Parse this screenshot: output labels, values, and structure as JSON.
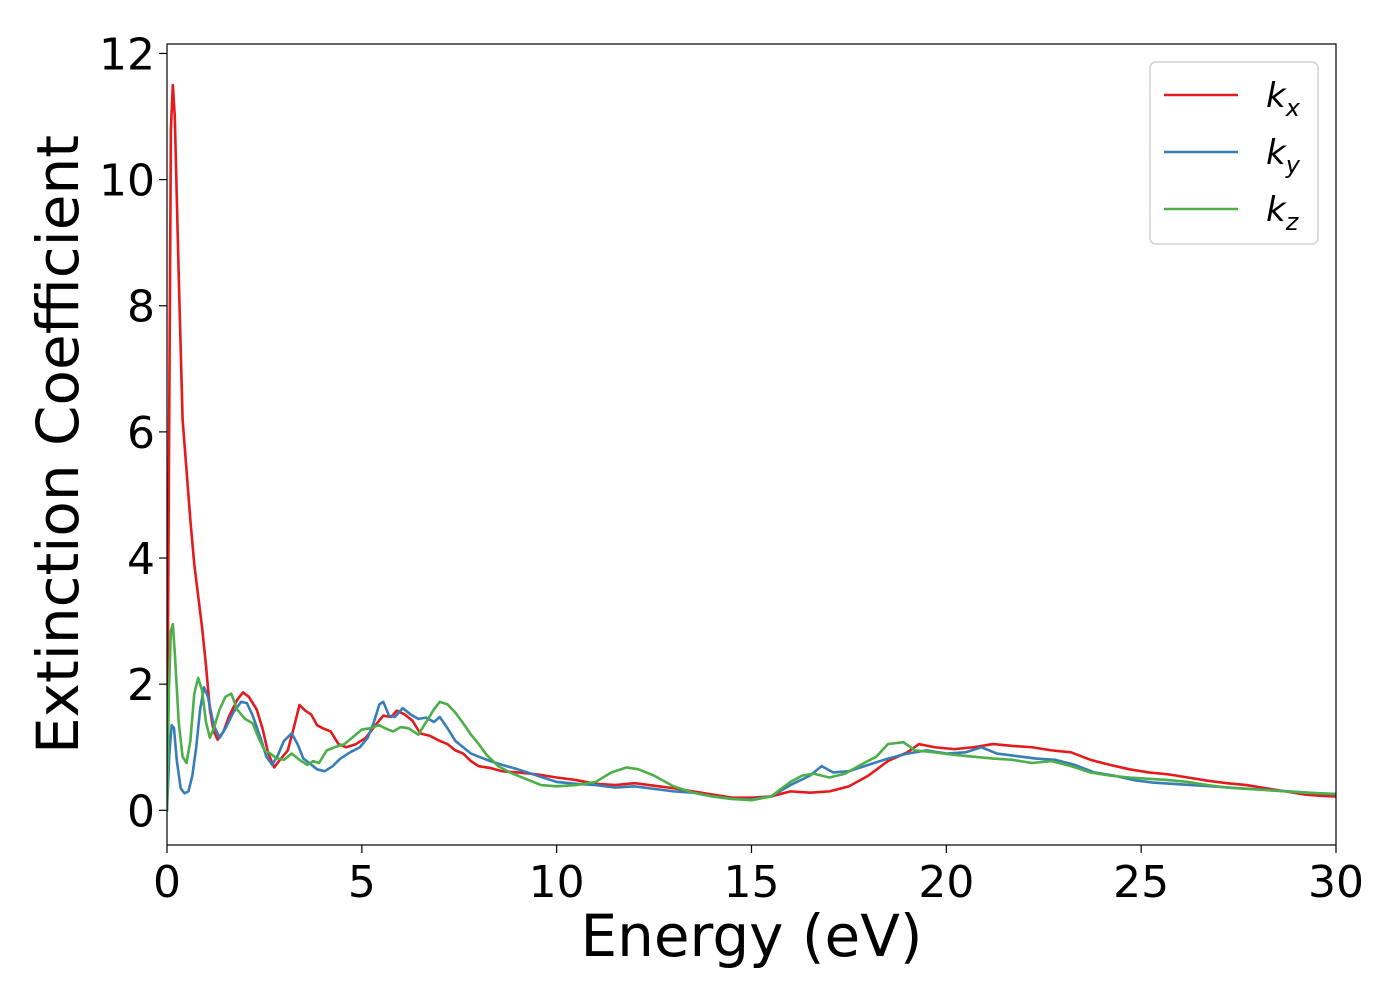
{
  "chart_data": {
    "type": "line",
    "title": "",
    "xlabel": "Energy (eV)",
    "ylabel": "Extinction Coefficient",
    "xlim": [
      0,
      30
    ],
    "ylim": [
      -0.55,
      12.15
    ],
    "xticks": [
      0,
      5,
      10,
      15,
      20,
      25,
      30
    ],
    "yticks": [
      0,
      2,
      4,
      6,
      8,
      10,
      12
    ],
    "grid": false,
    "legend_position": "top-right",
    "series": [
      {
        "name": "k",
        "subscript": "x",
        "color": "#e41a1c",
        "points": [
          [
            0,
            0
          ],
          [
            0.05,
            5.5
          ],
          [
            0.1,
            10.8
          ],
          [
            0.15,
            11.5
          ],
          [
            0.2,
            11.0
          ],
          [
            0.3,
            8.5
          ],
          [
            0.4,
            6.2
          ],
          [
            0.5,
            5.4
          ],
          [
            0.6,
            4.6
          ],
          [
            0.7,
            3.9
          ],
          [
            0.8,
            3.4
          ],
          [
            0.9,
            2.9
          ],
          [
            1.0,
            2.3
          ],
          [
            1.1,
            1.6
          ],
          [
            1.2,
            1.25
          ],
          [
            1.3,
            1.12
          ],
          [
            1.45,
            1.25
          ],
          [
            1.6,
            1.5
          ],
          [
            1.8,
            1.75
          ],
          [
            1.95,
            1.87
          ],
          [
            2.1,
            1.8
          ],
          [
            2.3,
            1.6
          ],
          [
            2.45,
            1.3
          ],
          [
            2.6,
            0.9
          ],
          [
            2.75,
            0.68
          ],
          [
            2.9,
            0.8
          ],
          [
            3.1,
            0.95
          ],
          [
            3.25,
            1.3
          ],
          [
            3.4,
            1.67
          ],
          [
            3.55,
            1.58
          ],
          [
            3.7,
            1.52
          ],
          [
            3.85,
            1.35
          ],
          [
            4.0,
            1.3
          ],
          [
            4.2,
            1.25
          ],
          [
            4.4,
            1.05
          ],
          [
            4.6,
            1.0
          ],
          [
            4.85,
            1.05
          ],
          [
            5.1,
            1.15
          ],
          [
            5.35,
            1.35
          ],
          [
            5.55,
            1.5
          ],
          [
            5.75,
            1.48
          ],
          [
            5.9,
            1.58
          ],
          [
            6.1,
            1.52
          ],
          [
            6.3,
            1.42
          ],
          [
            6.5,
            1.22
          ],
          [
            6.75,
            1.18
          ],
          [
            7.0,
            1.1
          ],
          [
            7.2,
            1.05
          ],
          [
            7.4,
            0.95
          ],
          [
            7.6,
            0.9
          ],
          [
            7.8,
            0.78
          ],
          [
            8.0,
            0.7
          ],
          [
            8.3,
            0.67
          ],
          [
            8.6,
            0.62
          ],
          [
            9.0,
            0.6
          ],
          [
            9.5,
            0.57
          ],
          [
            10.0,
            0.52
          ],
          [
            10.5,
            0.48
          ],
          [
            11.0,
            0.42
          ],
          [
            11.5,
            0.4
          ],
          [
            12.0,
            0.43
          ],
          [
            12.5,
            0.39
          ],
          [
            13.0,
            0.35
          ],
          [
            13.5,
            0.3
          ],
          [
            14.0,
            0.25
          ],
          [
            14.5,
            0.2
          ],
          [
            15.0,
            0.2
          ],
          [
            15.5,
            0.22
          ],
          [
            16.0,
            0.3
          ],
          [
            16.5,
            0.28
          ],
          [
            17.0,
            0.3
          ],
          [
            17.5,
            0.38
          ],
          [
            18.0,
            0.55
          ],
          [
            18.5,
            0.78
          ],
          [
            19.0,
            0.92
          ],
          [
            19.3,
            1.05
          ],
          [
            19.7,
            1.0
          ],
          [
            20.2,
            0.97
          ],
          [
            20.7,
            1.0
          ],
          [
            21.2,
            1.05
          ],
          [
            21.7,
            1.02
          ],
          [
            22.2,
            1.0
          ],
          [
            22.7,
            0.95
          ],
          [
            23.2,
            0.92
          ],
          [
            23.7,
            0.8
          ],
          [
            24.2,
            0.72
          ],
          [
            24.7,
            0.65
          ],
          [
            25.2,
            0.6
          ],
          [
            25.7,
            0.57
          ],
          [
            26.2,
            0.52
          ],
          [
            26.7,
            0.47
          ],
          [
            27.2,
            0.43
          ],
          [
            27.7,
            0.4
          ],
          [
            28.2,
            0.35
          ],
          [
            28.7,
            0.3
          ],
          [
            29.2,
            0.25
          ],
          [
            29.6,
            0.23
          ],
          [
            30.0,
            0.22
          ]
        ]
      },
      {
        "name": "k",
        "subscript": "y",
        "color": "#377eb8",
        "points": [
          [
            0,
            0
          ],
          [
            0.06,
            0.9
          ],
          [
            0.12,
            1.35
          ],
          [
            0.18,
            1.3
          ],
          [
            0.25,
            0.8
          ],
          [
            0.35,
            0.35
          ],
          [
            0.45,
            0.27
          ],
          [
            0.55,
            0.3
          ],
          [
            0.65,
            0.55
          ],
          [
            0.75,
            1.0
          ],
          [
            0.85,
            1.6
          ],
          [
            0.95,
            1.95
          ],
          [
            1.05,
            1.8
          ],
          [
            1.2,
            1.35
          ],
          [
            1.35,
            1.15
          ],
          [
            1.5,
            1.3
          ],
          [
            1.7,
            1.55
          ],
          [
            1.9,
            1.72
          ],
          [
            2.05,
            1.7
          ],
          [
            2.2,
            1.5
          ],
          [
            2.4,
            1.15
          ],
          [
            2.55,
            0.85
          ],
          [
            2.7,
            0.72
          ],
          [
            2.85,
            0.88
          ],
          [
            3.0,
            1.1
          ],
          [
            3.2,
            1.22
          ],
          [
            3.35,
            1.05
          ],
          [
            3.5,
            0.82
          ],
          [
            3.65,
            0.75
          ],
          [
            3.85,
            0.65
          ],
          [
            4.05,
            0.62
          ],
          [
            4.25,
            0.7
          ],
          [
            4.45,
            0.82
          ],
          [
            4.7,
            0.92
          ],
          [
            4.95,
            1.0
          ],
          [
            5.15,
            1.15
          ],
          [
            5.3,
            1.38
          ],
          [
            5.45,
            1.68
          ],
          [
            5.55,
            1.72
          ],
          [
            5.7,
            1.5
          ],
          [
            5.85,
            1.48
          ],
          [
            6.05,
            1.62
          ],
          [
            6.25,
            1.52
          ],
          [
            6.45,
            1.45
          ],
          [
            6.65,
            1.47
          ],
          [
            6.85,
            1.4
          ],
          [
            7.0,
            1.48
          ],
          [
            7.2,
            1.3
          ],
          [
            7.4,
            1.1
          ],
          [
            7.6,
            1.0
          ],
          [
            7.8,
            0.9
          ],
          [
            8.0,
            0.85
          ],
          [
            8.3,
            0.78
          ],
          [
            8.6,
            0.72
          ],
          [
            9.0,
            0.65
          ],
          [
            9.5,
            0.55
          ],
          [
            10.0,
            0.45
          ],
          [
            10.5,
            0.42
          ],
          [
            11.0,
            0.4
          ],
          [
            11.5,
            0.36
          ],
          [
            12.0,
            0.38
          ],
          [
            12.5,
            0.34
          ],
          [
            13.0,
            0.3
          ],
          [
            13.5,
            0.28
          ],
          [
            14.0,
            0.22
          ],
          [
            14.5,
            0.18
          ],
          [
            15.0,
            0.17
          ],
          [
            15.5,
            0.22
          ],
          [
            16.0,
            0.4
          ],
          [
            16.5,
            0.55
          ],
          [
            16.8,
            0.7
          ],
          [
            17.1,
            0.6
          ],
          [
            17.5,
            0.62
          ],
          [
            18.0,
            0.72
          ],
          [
            18.5,
            0.82
          ],
          [
            19.0,
            0.9
          ],
          [
            19.5,
            0.95
          ],
          [
            20.0,
            0.9
          ],
          [
            20.5,
            0.92
          ],
          [
            20.9,
            1.0
          ],
          [
            21.3,
            0.9
          ],
          [
            21.8,
            0.86
          ],
          [
            22.3,
            0.82
          ],
          [
            22.8,
            0.8
          ],
          [
            23.3,
            0.72
          ],
          [
            23.8,
            0.6
          ],
          [
            24.3,
            0.55
          ],
          [
            24.8,
            0.48
          ],
          [
            25.3,
            0.44
          ],
          [
            25.8,
            0.42
          ],
          [
            26.3,
            0.4
          ],
          [
            26.8,
            0.38
          ],
          [
            27.3,
            0.36
          ],
          [
            27.8,
            0.34
          ],
          [
            28.3,
            0.32
          ],
          [
            28.8,
            0.3
          ],
          [
            29.3,
            0.28
          ],
          [
            30.0,
            0.25
          ]
        ]
      },
      {
        "name": "k",
        "subscript": "z",
        "color": "#4daf4a",
        "points": [
          [
            0,
            0
          ],
          [
            0.05,
            1.9
          ],
          [
            0.1,
            2.85
          ],
          [
            0.15,
            2.95
          ],
          [
            0.2,
            2.5
          ],
          [
            0.3,
            1.4
          ],
          [
            0.4,
            0.85
          ],
          [
            0.5,
            0.75
          ],
          [
            0.6,
            1.1
          ],
          [
            0.7,
            1.85
          ],
          [
            0.8,
            2.1
          ],
          [
            0.9,
            1.9
          ],
          [
            1.0,
            1.4
          ],
          [
            1.1,
            1.15
          ],
          [
            1.2,
            1.3
          ],
          [
            1.35,
            1.6
          ],
          [
            1.5,
            1.8
          ],
          [
            1.65,
            1.85
          ],
          [
            1.8,
            1.6
          ],
          [
            2.0,
            1.45
          ],
          [
            2.2,
            1.38
          ],
          [
            2.35,
            1.15
          ],
          [
            2.5,
            0.95
          ],
          [
            2.65,
            0.9
          ],
          [
            2.8,
            0.83
          ],
          [
            3.0,
            0.8
          ],
          [
            3.2,
            0.9
          ],
          [
            3.4,
            0.8
          ],
          [
            3.6,
            0.72
          ],
          [
            3.75,
            0.78
          ],
          [
            3.9,
            0.75
          ],
          [
            4.1,
            0.95
          ],
          [
            4.3,
            1.0
          ],
          [
            4.55,
            1.05
          ],
          [
            4.75,
            1.15
          ],
          [
            5.0,
            1.28
          ],
          [
            5.2,
            1.3
          ],
          [
            5.45,
            1.35
          ],
          [
            5.6,
            1.3
          ],
          [
            5.8,
            1.25
          ],
          [
            6.0,
            1.32
          ],
          [
            6.2,
            1.3
          ],
          [
            6.45,
            1.2
          ],
          [
            6.65,
            1.4
          ],
          [
            6.85,
            1.6
          ],
          [
            7.0,
            1.72
          ],
          [
            7.2,
            1.68
          ],
          [
            7.4,
            1.55
          ],
          [
            7.6,
            1.38
          ],
          [
            7.8,
            1.2
          ],
          [
            8.0,
            1.05
          ],
          [
            8.2,
            0.88
          ],
          [
            8.5,
            0.7
          ],
          [
            8.8,
            0.6
          ],
          [
            9.2,
            0.5
          ],
          [
            9.6,
            0.4
          ],
          [
            10.0,
            0.38
          ],
          [
            10.5,
            0.4
          ],
          [
            11.0,
            0.45
          ],
          [
            11.4,
            0.6
          ],
          [
            11.8,
            0.68
          ],
          [
            12.1,
            0.65
          ],
          [
            12.5,
            0.55
          ],
          [
            13.0,
            0.38
          ],
          [
            13.5,
            0.28
          ],
          [
            14.0,
            0.22
          ],
          [
            14.5,
            0.18
          ],
          [
            15.0,
            0.16
          ],
          [
            15.5,
            0.22
          ],
          [
            16.0,
            0.45
          ],
          [
            16.3,
            0.55
          ],
          [
            16.6,
            0.58
          ],
          [
            17.0,
            0.52
          ],
          [
            17.4,
            0.58
          ],
          [
            17.8,
            0.72
          ],
          [
            18.2,
            0.85
          ],
          [
            18.5,
            1.05
          ],
          [
            18.9,
            1.08
          ],
          [
            19.2,
            0.95
          ],
          [
            19.7,
            0.92
          ],
          [
            20.2,
            0.88
          ],
          [
            20.7,
            0.85
          ],
          [
            21.2,
            0.82
          ],
          [
            21.7,
            0.8
          ],
          [
            22.2,
            0.75
          ],
          [
            22.7,
            0.78
          ],
          [
            23.2,
            0.7
          ],
          [
            23.7,
            0.6
          ],
          [
            24.2,
            0.55
          ],
          [
            24.7,
            0.52
          ],
          [
            25.2,
            0.5
          ],
          [
            25.7,
            0.48
          ],
          [
            26.2,
            0.45
          ],
          [
            26.7,
            0.4
          ],
          [
            27.2,
            0.36
          ],
          [
            27.7,
            0.34
          ],
          [
            28.2,
            0.32
          ],
          [
            28.7,
            0.3
          ],
          [
            29.2,
            0.28
          ],
          [
            30.0,
            0.26
          ]
        ]
      }
    ]
  }
}
